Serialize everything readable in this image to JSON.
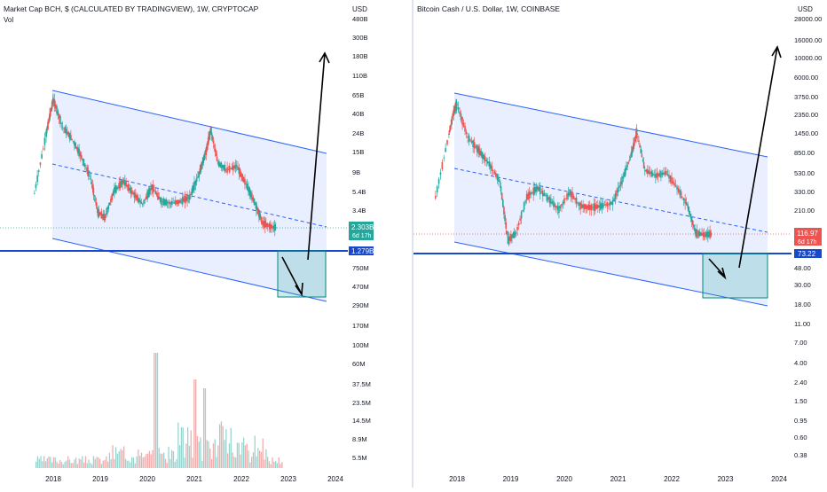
{
  "left": {
    "title": "Market Cap BCH, $ (CALCULATED BY TRADINGVIEW), 1W, CRYPTOCAP",
    "subtitle": "Vol",
    "currency": "USD",
    "price_ticks": [
      "480B",
      "300B",
      "180B",
      "110B",
      "65B",
      "40B",
      "24B",
      "15B",
      "9B",
      "5.4B",
      "3.4B",
      "750M",
      "470M",
      "290M",
      "170M",
      "100M",
      "60M"
    ],
    "volume_ticks": [
      "37.5M",
      "23.5M",
      "14.5M",
      "8.9M",
      "5.5M"
    ],
    "x_ticks": [
      "2018",
      "2019",
      "2020",
      "2021",
      "2022",
      "2023",
      "2024"
    ],
    "last_price": {
      "value": "2.303B",
      "countdown": "6d 17h"
    },
    "support": {
      "value": "1.279B"
    }
  },
  "right": {
    "title": "Bitcoin Cash / U.S. Dollar, 1W, COINBASE",
    "currency": "USD",
    "price_ticks": [
      "28000.00",
      "16000.00",
      "10000.00",
      "6000.00",
      "3750.00",
      "2350.00",
      "1450.00",
      "850.00",
      "530.00",
      "330.00",
      "210.00",
      "48.00",
      "30.00",
      "18.00",
      "11.00",
      "7.00",
      "4.00",
      "2.40",
      "1.50",
      "0.95",
      "0.60",
      "0.38"
    ],
    "x_ticks": [
      "2018",
      "2019",
      "2020",
      "2021",
      "2022",
      "2023",
      "2024"
    ],
    "last_price": {
      "value": "116.97",
      "countdown": "6d 17h"
    },
    "support": {
      "value": "73.22"
    }
  },
  "chart_data": [
    {
      "type": "line",
      "title": "Market Cap BCH, $ (CALCULATED BY TRADINGVIEW), 1W, CRYPTOCAP",
      "y_scale": "log",
      "x": [
        2017.6,
        2017.85,
        2017.95,
        2018.0,
        2018.2,
        2018.4,
        2018.6,
        2018.8,
        2018.95,
        2019.1,
        2019.3,
        2019.5,
        2019.7,
        2019.9,
        2020.1,
        2020.3,
        2020.5,
        2020.7,
        2020.9,
        2021.1,
        2021.25,
        2021.35,
        2021.5,
        2021.7,
        2021.9,
        2022.1,
        2022.3,
        2022.45,
        2022.6,
        2022.75
      ],
      "series": [
        {
          "name": "",
          "values": [
            5.5,
            25,
            45,
            60,
            30,
            22,
            14,
            8,
            3.4,
            3.0,
            6.0,
            7.5,
            5.5,
            4.2,
            6.5,
            4.5,
            4.3,
            4.5,
            5.0,
            9,
            16,
            28,
            12,
            10,
            11,
            7,
            4.2,
            2.6,
            2.4,
            2.3
          ]
        }
      ],
      "units": "B USD",
      "last_value": 2.303,
      "support": 1.279
    },
    {
      "type": "line",
      "title": "Bitcoin Cash / U.S. Dollar, 1W, COINBASE",
      "y_scale": "log",
      "x": [
        2017.6,
        2017.85,
        2017.95,
        2018.0,
        2018.2,
        2018.4,
        2018.6,
        2018.8,
        2018.95,
        2019.1,
        2019.3,
        2019.5,
        2019.7,
        2019.9,
        2020.1,
        2020.3,
        2020.5,
        2020.7,
        2020.9,
        2021.1,
        2021.25,
        2021.35,
        2021.5,
        2021.7,
        2021.9,
        2022.1,
        2022.3,
        2022.45,
        2022.6,
        2022.75
      ],
      "series": [
        {
          "name": "",
          "values": [
            300,
            1500,
            2800,
            3200,
            1400,
            1000,
            700,
            450,
            100,
            120,
            300,
            380,
            290,
            220,
            340,
            240,
            230,
            240,
            260,
            500,
            900,
            1600,
            600,
            520,
            560,
            380,
            240,
            120,
            115,
            117
          ]
        }
      ],
      "units": "USD",
      "last_value": 116.97,
      "support": 73.22
    }
  ]
}
